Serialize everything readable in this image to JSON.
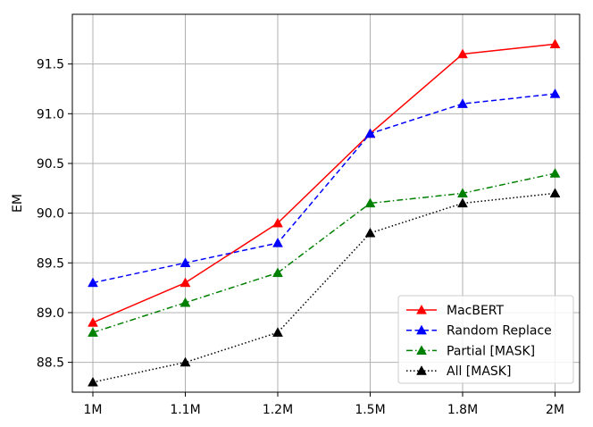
{
  "chart_data": {
    "type": "line",
    "title": "",
    "xlabel": "",
    "ylabel": "EM",
    "categories": [
      "1M",
      "1.1M",
      "1.2M",
      "1.5M",
      "1.8M",
      "2M"
    ],
    "ylim": [
      88.2,
      92.0
    ],
    "yticks": [
      "88.5",
      "89.0",
      "89.5",
      "90.0",
      "90.5",
      "91.0",
      "91.5"
    ],
    "grid": true,
    "legend_position": "lower-right",
    "series": [
      {
        "name": "MacBERT",
        "color": "#ff0000",
        "line_style": "solid",
        "marker": "triangle-up",
        "values": [
          88.9,
          89.3,
          89.9,
          90.8,
          91.6,
          91.7
        ]
      },
      {
        "name": "Random Replace",
        "color": "#0000ff",
        "line_style": "dashed",
        "marker": "triangle-up",
        "values": [
          89.3,
          89.5,
          89.7,
          90.8,
          91.1,
          91.2
        ]
      },
      {
        "name": "Partial [MASK]",
        "color": "#008000",
        "line_style": "dashdot",
        "marker": "triangle-up",
        "values": [
          88.8,
          89.1,
          89.4,
          90.1,
          90.2,
          90.4
        ]
      },
      {
        "name": "All [MASK]",
        "color": "#000000",
        "line_style": "dotted",
        "marker": "triangle-up",
        "values": [
          88.3,
          88.5,
          88.8,
          89.8,
          90.1,
          90.2
        ]
      }
    ]
  }
}
